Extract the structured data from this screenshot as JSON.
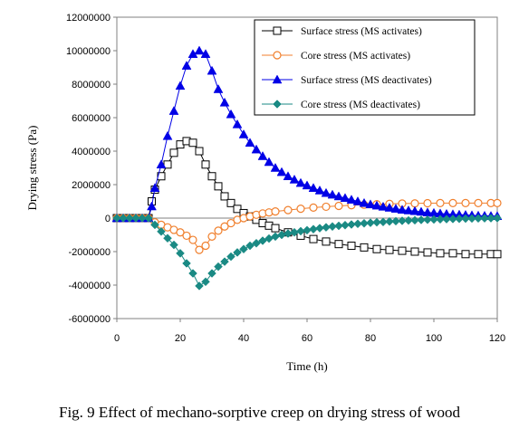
{
  "caption": "Fig. 9 Effect of mechano-sorptive creep on drying stress of wood",
  "chart_data": {
    "type": "line",
    "title": "",
    "xlabel": "Time (h)",
    "ylabel": "Drying stress (Pa)",
    "xlim": [
      0,
      120
    ],
    "ylim": [
      -6000000,
      12000000
    ],
    "xticks": [
      0,
      20,
      40,
      60,
      80,
      100,
      120
    ],
    "xtick_labels": [
      "0",
      "20",
      "40",
      "60",
      "80",
      "100",
      "120"
    ],
    "yticks": [
      -6000000,
      -4000000,
      -2000000,
      0,
      2000000,
      4000000,
      6000000,
      8000000,
      10000000,
      12000000
    ],
    "ytick_labels": [
      "-6000000",
      "-4000000",
      "-2000000",
      "0",
      "2000000",
      "4000000",
      "6000000",
      "8000000",
      "10000000",
      "12000000"
    ],
    "grid": false,
    "legend_position": "top-right",
    "series": [
      {
        "name": "Surface stress (MS activates)",
        "color": "#000000",
        "marker": "square-open",
        "x": [
          0,
          2,
          4,
          6,
          8,
          10,
          11,
          12,
          14,
          16,
          18,
          20,
          22,
          24,
          26,
          28,
          30,
          32,
          34,
          36,
          38,
          40,
          42,
          44,
          46,
          48,
          50,
          54,
          58,
          62,
          66,
          70,
          74,
          78,
          82,
          86,
          90,
          94,
          98,
          102,
          106,
          110,
          114,
          118,
          120
        ],
        "y": [
          0,
          0,
          0,
          0,
          0,
          0,
          1000000,
          1700000,
          2500000,
          3200000,
          3900000,
          4400000,
          4600000,
          4500000,
          4000000,
          3200000,
          2500000,
          1900000,
          1300000,
          900000,
          550000,
          300000,
          100000,
          -100000,
          -300000,
          -450000,
          -600000,
          -850000,
          -1050000,
          -1250000,
          -1400000,
          -1550000,
          -1650000,
          -1750000,
          -1850000,
          -1900000,
          -1950000,
          -2000000,
          -2050000,
          -2100000,
          -2100000,
          -2150000,
          -2150000,
          -2150000,
          -2150000
        ]
      },
      {
        "name": "Core stress (MS activates)",
        "color": "#f07f2c",
        "marker": "circle-open",
        "x": [
          0,
          2,
          4,
          6,
          8,
          10,
          12,
          14,
          16,
          18,
          20,
          22,
          24,
          26,
          28,
          30,
          32,
          34,
          36,
          38,
          40,
          42,
          44,
          46,
          48,
          50,
          54,
          58,
          62,
          66,
          70,
          74,
          78,
          82,
          86,
          90,
          94,
          98,
          102,
          106,
          110,
          114,
          118,
          120
        ],
        "y": [
          0,
          0,
          0,
          0,
          0,
          0,
          -250000,
          -400000,
          -550000,
          -700000,
          -850000,
          -1050000,
          -1300000,
          -1900000,
          -1650000,
          -1100000,
          -750000,
          -500000,
          -300000,
          -100000,
          0,
          100000,
          200000,
          280000,
          340000,
          400000,
          480000,
          560000,
          630000,
          680000,
          730000,
          770000,
          800000,
          830000,
          850000,
          870000,
          880000,
          890000,
          900000,
          900000,
          900000,
          900000,
          900000,
          900000
        ]
      },
      {
        "name": "Surface stress (MS deactivates)",
        "color": "#0000e6",
        "marker": "triangle-filled",
        "x": [
          0,
          2,
          4,
          6,
          8,
          10,
          11,
          12,
          14,
          16,
          18,
          20,
          22,
          24,
          26,
          28,
          30,
          32,
          34,
          36,
          38,
          40,
          42,
          44,
          46,
          48,
          50,
          52,
          54,
          56,
          58,
          60,
          62,
          64,
          66,
          68,
          70,
          72,
          74,
          76,
          78,
          80,
          82,
          84,
          86,
          88,
          90,
          92,
          94,
          96,
          98,
          100,
          102,
          104,
          106,
          108,
          110,
          112,
          114,
          116,
          118,
          120
        ],
        "y": [
          0,
          0,
          0,
          0,
          0,
          0,
          700000,
          1800000,
          3200000,
          4900000,
          6400000,
          7900000,
          9100000,
          9800000,
          10000000,
          9800000,
          8800000,
          7700000,
          6900000,
          6200000,
          5600000,
          5000000,
          4500000,
          4100000,
          3700000,
          3350000,
          3000000,
          2750000,
          2500000,
          2300000,
          2100000,
          1950000,
          1800000,
          1650000,
          1500000,
          1400000,
          1300000,
          1200000,
          1100000,
          1000000,
          900000,
          820000,
          750000,
          680000,
          620000,
          560000,
          500000,
          460000,
          420000,
          380000,
          340000,
          310000,
          280000,
          250000,
          230000,
          210000,
          190000,
          170000,
          150000,
          140000,
          130000,
          120000
        ]
      },
      {
        "name": "Core stress (MS deactivates)",
        "color": "#1a8a84",
        "marker": "diamond-filled",
        "x": [
          0,
          2,
          4,
          6,
          8,
          10,
          12,
          14,
          16,
          18,
          20,
          22,
          24,
          26,
          28,
          30,
          32,
          34,
          36,
          38,
          40,
          42,
          44,
          46,
          48,
          50,
          52,
          54,
          56,
          58,
          60,
          62,
          64,
          66,
          68,
          70,
          72,
          74,
          76,
          78,
          80,
          82,
          84,
          86,
          88,
          90,
          92,
          94,
          96,
          98,
          100,
          102,
          104,
          106,
          108,
          110,
          112,
          114,
          116,
          118,
          120
        ],
        "y": [
          0,
          0,
          0,
          0,
          0,
          0,
          -400000,
          -800000,
          -1200000,
          -1600000,
          -2100000,
          -2700000,
          -3300000,
          -4050000,
          -3800000,
          -3300000,
          -2900000,
          -2600000,
          -2300000,
          -2050000,
          -1850000,
          -1650000,
          -1500000,
          -1350000,
          -1220000,
          -1100000,
          -1000000,
          -920000,
          -850000,
          -780000,
          -720000,
          -660000,
          -600000,
          -550000,
          -500000,
          -460000,
          -420000,
          -380000,
          -340000,
          -310000,
          -280000,
          -250000,
          -230000,
          -200000,
          -180000,
          -160000,
          -140000,
          -125000,
          -110000,
          -95000,
          -80000,
          -70000,
          -60000,
          -50000,
          -40000,
          -30000,
          -20000,
          -15000,
          -10000,
          -5000,
          0
        ]
      }
    ]
  }
}
